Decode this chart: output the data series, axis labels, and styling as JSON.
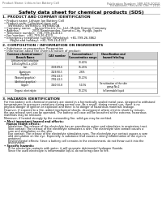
{
  "page_bg": "#ffffff",
  "header_left": "Product Name: Lithium Ion Battery Cell",
  "header_right_line1": "Publication Number: SBR-SDS-00010",
  "header_right_line2": "Established / Revision: Dec.7.2010",
  "main_title": "Safety data sheet for chemical products (SDS)",
  "section1_title": "1. PRODUCT AND COMPANY IDENTIFICATION",
  "product_name_label": "Product name: Lithium Ion Battery Cell",
  "product_code_label": "Product code: Cylindrical-type cell",
  "product_code_vals": "SNY86600, SNY88500, SNY86600A",
  "company_name_label": "Company name:    Sanyo Electric Co., Ltd., Mobile Energy Company",
  "address_label": "Address:              2001 Kamimonden, Sumoto-City, Hyogo, Japan",
  "telephone_label": "Telephone number:  +81-799-24-4111",
  "fax_label": "Fax number:  +81-799-26-4120",
  "emergency_label": "Emergency telephone number (Weekday): +81-799-26-3862",
  "emergency_label2": "(Night and holiday): +81-799-26-4101",
  "section2_title": "2. COMPOSITION / INFORMATION ON INGREDIENTS",
  "substance_label": "Substance or preparation: Preparation",
  "table_header": "Information about the chemical nature of product:",
  "table_cols": [
    "Common chemical name /\nBranch Name",
    "CAS number",
    "Concentration /\nConcentration range",
    "Classification and\nhazard labeling"
  ],
  "table_rows": [
    [
      "Lithium nickel cobaltate\n(LiNixCoyMn(1-x-y)O2)",
      "-",
      "30-40%",
      "-"
    ],
    [
      "Iron",
      "7439-89-6",
      "16-26%",
      "-"
    ],
    [
      "Aluminum",
      "7429-90-5",
      "2-6%",
      "-"
    ],
    [
      "Graphite\n(Natural graphite)\n(Artificial graphite)",
      "7782-42-5\n7782-42-5",
      "10-20%",
      "-"
    ],
    [
      "Copper",
      "7440-50-8",
      "5-10%",
      "Sensitization of the skin\ngroup No.2"
    ],
    [
      "Organic electrolyte",
      "-",
      "10-20%",
      "Inflammable liquid"
    ]
  ],
  "section3_title": "3. HAZARDS IDENTIFICATION",
  "hazard_text1": "For this battery cell, chemical materials are stored in a hermetically sealed metal case, designed to withstand\ntemperatures or pressures variations during normal use. As a result, during normal use, there is no\nphysical danger of ignition or explosion and there is no danger of hazardous materials leakage.",
  "hazard_text2": "However, if exposed to a fire, added mechanical shocks, decomposed, where electric shock by misuse,\nthe gas release vent can be operated. The battery cell case will be breached at the extreme, hazardous\nmaterials may be released.",
  "hazard_text3": "Moreover, if heated strongly by the surrounding fire, solid gas may be emitted.",
  "important_label": "Most important hazard and effects:",
  "human_label": "Human health effects:",
  "inhalation_text": "Inhalation: The release of the electrolyte has an anesthesia action and stimulates in respiratory tract.",
  "skin_text1": "Skin contact: The release of the electrolyte stimulates a skin. The electrolyte skin contact causes a",
  "skin_text2": "sore and stimulation on the skin.",
  "eye_text1": "Eye contact: The release of the electrolyte stimulates eyes. The electrolyte eye contact causes a sore",
  "eye_text2": "and stimulation on the eye. Especially, a substance that causes a strong inflammation of the eyes is",
  "eye_text3": "contained.",
  "env_text1": "Environmental effects: Since a battery cell remains in the environment, do not throw out it into the",
  "env_text2": "environment.",
  "specific_label": "Specific hazards:",
  "specific_text1": "If the electrolyte contacts with water, it will generate detrimental hydrogen fluoride.",
  "specific_text2": "Since the used electrolyte is inflammable liquid, do not bring close to fire.",
  "table_header_bg": "#d0d0d0",
  "header_color": "#666666",
  "text_color": "#111111",
  "line_color": "#999999"
}
